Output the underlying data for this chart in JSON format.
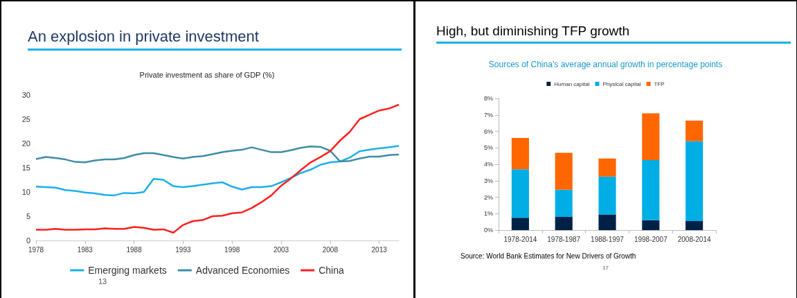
{
  "chart_data": [
    {
      "type": "line",
      "title": "An explosion in private investment",
      "subtitle": "Private investment as share of GDP (%)",
      "x": [
        1978,
        1979,
        1980,
        1981,
        1982,
        1983,
        1984,
        1985,
        1986,
        1987,
        1988,
        1989,
        1990,
        1991,
        1992,
        1993,
        1994,
        1995,
        1996,
        1997,
        1998,
        1999,
        2000,
        2001,
        2002,
        2003,
        2004,
        2005,
        2006,
        2007,
        2008,
        2009,
        2010,
        2011,
        2012,
        2013,
        2014,
        2015
      ],
      "series": [
        {
          "name": "Emerging markets",
          "color": "#1ab0e8",
          "values": [
            11.1,
            11.0,
            10.9,
            10.4,
            10.2,
            9.9,
            9.7,
            9.4,
            9.3,
            9.8,
            9.7,
            10.0,
            12.7,
            12.5,
            11.2,
            11.0,
            11.2,
            11.5,
            11.8,
            12.0,
            11.1,
            10.5,
            11.0,
            11.0,
            11.2,
            12.0,
            12.9,
            13.9,
            14.6,
            15.6,
            16.1,
            16.3,
            17.1,
            18.4,
            18.7,
            19.0,
            19.2,
            19.5
          ]
        },
        {
          "name": "Advanced Economies",
          "color": "#3d8ca8",
          "values": [
            16.8,
            17.2,
            17.0,
            16.7,
            16.2,
            16.1,
            16.5,
            16.7,
            16.7,
            17.0,
            17.6,
            18.0,
            18.0,
            17.6,
            17.2,
            16.9,
            17.2,
            17.4,
            17.8,
            18.2,
            18.5,
            18.7,
            19.2,
            18.7,
            18.2,
            18.2,
            18.6,
            19.1,
            19.4,
            19.3,
            18.5,
            16.3,
            16.4,
            16.9,
            17.3,
            17.3,
            17.6,
            17.7
          ]
        },
        {
          "name": "China",
          "color": "#ff1f1f",
          "values": [
            2.2,
            2.2,
            2.4,
            2.2,
            2.2,
            2.3,
            2.3,
            2.5,
            2.4,
            2.4,
            2.8,
            2.6,
            2.2,
            2.3,
            1.6,
            3.2,
            4.0,
            4.2,
            5.0,
            5.1,
            5.6,
            5.8,
            6.7,
            7.9,
            9.3,
            11.3,
            12.8,
            14.5,
            16.1,
            17.2,
            18.4,
            20.6,
            22.4,
            25.0,
            25.9,
            26.8,
            27.2,
            28.0
          ]
        }
      ],
      "xlim": [
        1978,
        2015
      ],
      "xticks": [
        1978,
        1983,
        1988,
        1993,
        1998,
        2003,
        2008,
        2013
      ],
      "ylim": [
        0,
        30
      ],
      "yticks": [
        0,
        5,
        10,
        15,
        20,
        25,
        30
      ],
      "grid": false,
      "legend": "bottom",
      "marker": "none",
      "line_style": "solid",
      "annotations": [
        "13"
      ]
    },
    {
      "type": "bar",
      "stacked": true,
      "title": "High, but diminishing TFP growth",
      "subtitle": "Sources of China’s average annual growth in percentage points",
      "categories": [
        "1978-2014",
        "1978-1987",
        "1988-1997",
        "1998-2007",
        "2008-2014"
      ],
      "series": [
        {
          "name": "Human capital",
          "color": "#002147",
          "values": [
            0.75,
            0.8,
            0.95,
            0.6,
            0.55
          ]
        },
        {
          "name": "Physical capital",
          "color": "#00aee5",
          "values": [
            2.95,
            1.65,
            2.3,
            3.65,
            4.85
          ]
        },
        {
          "name": "TFP",
          "color": "#ff6600",
          "values": [
            1.9,
            2.25,
            1.1,
            2.85,
            1.25
          ]
        }
      ],
      "ylim": [
        0,
        8
      ],
      "yticks": [
        {
          "value": 0,
          "label": "0%"
        },
        {
          "value": 1,
          "label": "1%"
        },
        {
          "value": 2,
          "label": "2%"
        },
        {
          "value": 3,
          "label": "3%"
        },
        {
          "value": 4,
          "label": "4%"
        },
        {
          "value": 5,
          "label": "5%"
        },
        {
          "value": 6,
          "label": "6%"
        },
        {
          "value": 7,
          "label": "7%"
        },
        {
          "value": 8,
          "label": "8%"
        }
      ],
      "grid": false,
      "legend": "top",
      "annotations": [
        "Source: World Bank Estimates for New Drivers of Growth",
        "17"
      ]
    }
  ]
}
